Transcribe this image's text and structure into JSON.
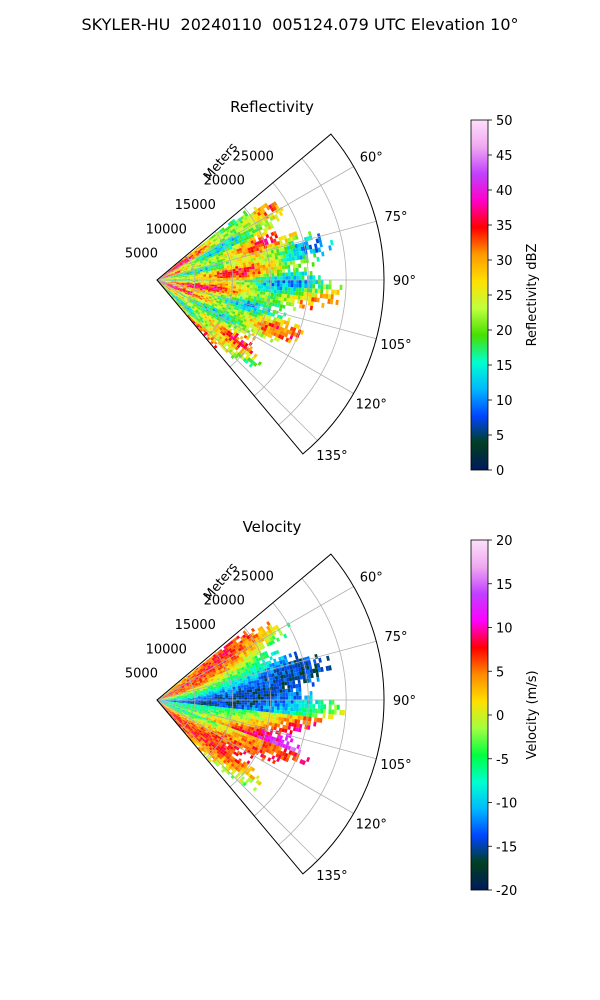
{
  "figure": {
    "title": "SKYLER-HU  20240110  005124.079 UTC Elevation 10°"
  },
  "chart_data": [
    {
      "type": "heatmap",
      "projection": "polar-sector",
      "title": "Reflectivity",
      "radial_label": "Meters",
      "radial_ticks": [
        "5000",
        "10000",
        "15000",
        "20000",
        "25000"
      ],
      "radial_tick_values": [
        5000,
        10000,
        15000,
        20000,
        25000
      ],
      "radial_range": [
        0,
        30000
      ],
      "angle_ticks": [
        "60°",
        "75°",
        "90°",
        "105°",
        "120°",
        "135°"
      ],
      "angle_tick_values": [
        60,
        75,
        90,
        105,
        120,
        135
      ],
      "angle_range": [
        50,
        140
      ],
      "grid": true,
      "colorbar": {
        "label": "Reflectivity dBZ",
        "range": [
          0,
          50
        ],
        "ticks": [
          "0",
          "5",
          "10",
          "15",
          "20",
          "25",
          "30",
          "35",
          "40",
          "45",
          "50"
        ],
        "tick_values": [
          0,
          5,
          10,
          15,
          20,
          25,
          30,
          35,
          40,
          45,
          50
        ],
        "stops": [
          "#001a5c",
          "#003f1f",
          "#0044ff",
          "#00b8ff",
          "#00ffd0",
          "#46e000",
          "#bfff3f",
          "#ffe000",
          "#ff9a00",
          "#ff0000",
          "#ff00c8",
          "#c040ff",
          "#f0a8f0",
          "#fde0fb"
        ]
      },
      "field": "reflectivity"
    },
    {
      "type": "heatmap",
      "projection": "polar-sector",
      "title": "Velocity",
      "radial_label": "Meters",
      "radial_ticks": [
        "5000",
        "10000",
        "15000",
        "20000",
        "25000"
      ],
      "radial_tick_values": [
        5000,
        10000,
        15000,
        20000,
        25000
      ],
      "radial_range": [
        0,
        30000
      ],
      "angle_ticks": [
        "60°",
        "75°",
        "90°",
        "105°",
        "120°",
        "135°"
      ],
      "angle_tick_values": [
        60,
        75,
        90,
        105,
        120,
        135
      ],
      "angle_range": [
        50,
        140
      ],
      "grid": true,
      "colorbar": {
        "label": "Velocity (m/s)",
        "range": [
          -20,
          20
        ],
        "ticks": [
          "-20",
          "-15",
          "-10",
          "-5",
          "0",
          "5",
          "10",
          "15",
          "20"
        ],
        "tick_values": [
          -20,
          -15,
          -10,
          -5,
          0,
          5,
          10,
          15,
          20
        ],
        "stops": [
          "#001a5c",
          "#003f1f",
          "#0044ff",
          "#00b8ff",
          "#00ffd0",
          "#00ff40",
          "#a0ff40",
          "#ffe000",
          "#ff8a00",
          "#ff0000",
          "#ff00ff",
          "#c040ff",
          "#f0a8f0",
          "#fde0fb"
        ]
      },
      "field": "velocity"
    }
  ]
}
